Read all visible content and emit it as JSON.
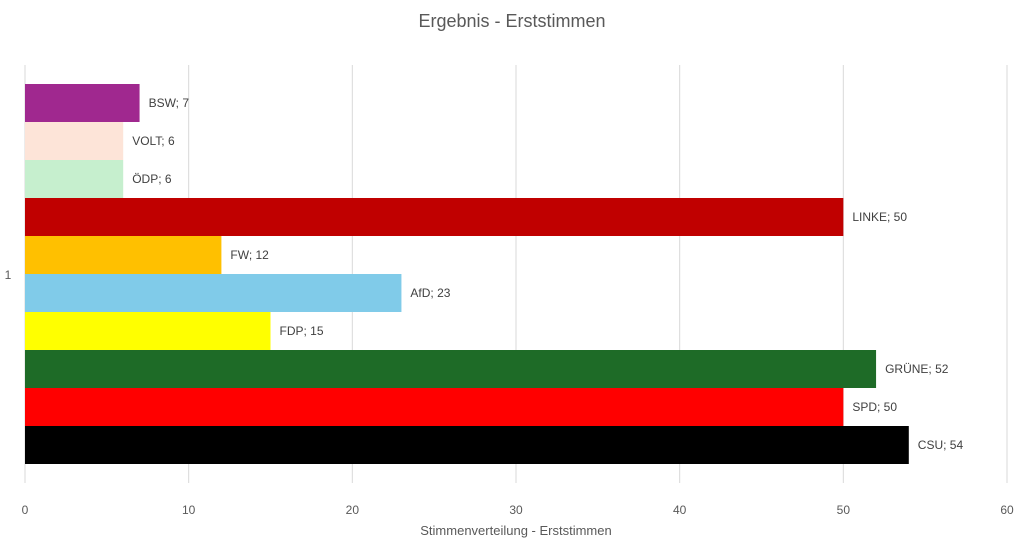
{
  "chart_data": {
    "type": "bar",
    "orientation": "horizontal",
    "title": "Ergebnis - Erststimmen",
    "xlabel": "Stimmenverteilung - Erststimmen",
    "ylabel": "",
    "xlim": [
      0,
      60
    ],
    "x_ticks": [
      0,
      10,
      20,
      30,
      40,
      50,
      60
    ],
    "category_label": "1",
    "grid": "vertical",
    "legend": "none",
    "series": [
      {
        "name": "CSU",
        "value": 54,
        "label": "CSU; 54",
        "color": "#000000"
      },
      {
        "name": "SPD",
        "value": 50,
        "label": "SPD; 50",
        "color": "#ff0000"
      },
      {
        "name": "GRÜNE",
        "value": 52,
        "label": "GRÜNE; 52",
        "color": "#1e6b27"
      },
      {
        "name": "FDP",
        "value": 15,
        "label": "FDP; 15",
        "color": "#ffff00"
      },
      {
        "name": "AfD",
        "value": 23,
        "label": "AfD; 23",
        "color": "#80cbe9"
      },
      {
        "name": "FW",
        "value": 12,
        "label": "FW; 12",
        "color": "#ffc000"
      },
      {
        "name": "LINKE",
        "value": 50,
        "label": "LINKE; 50",
        "color": "#c00000"
      },
      {
        "name": "ÖDP",
        "value": 6,
        "label": "ÖDP; 6",
        "color": "#c6efce"
      },
      {
        "name": "VOLT",
        "value": 6,
        "label": "VOLT; 6",
        "color": "#fde4d8"
      },
      {
        "name": "BSW",
        "value": 7,
        "label": "BSW; 7",
        "color": "#a0288f"
      }
    ]
  }
}
